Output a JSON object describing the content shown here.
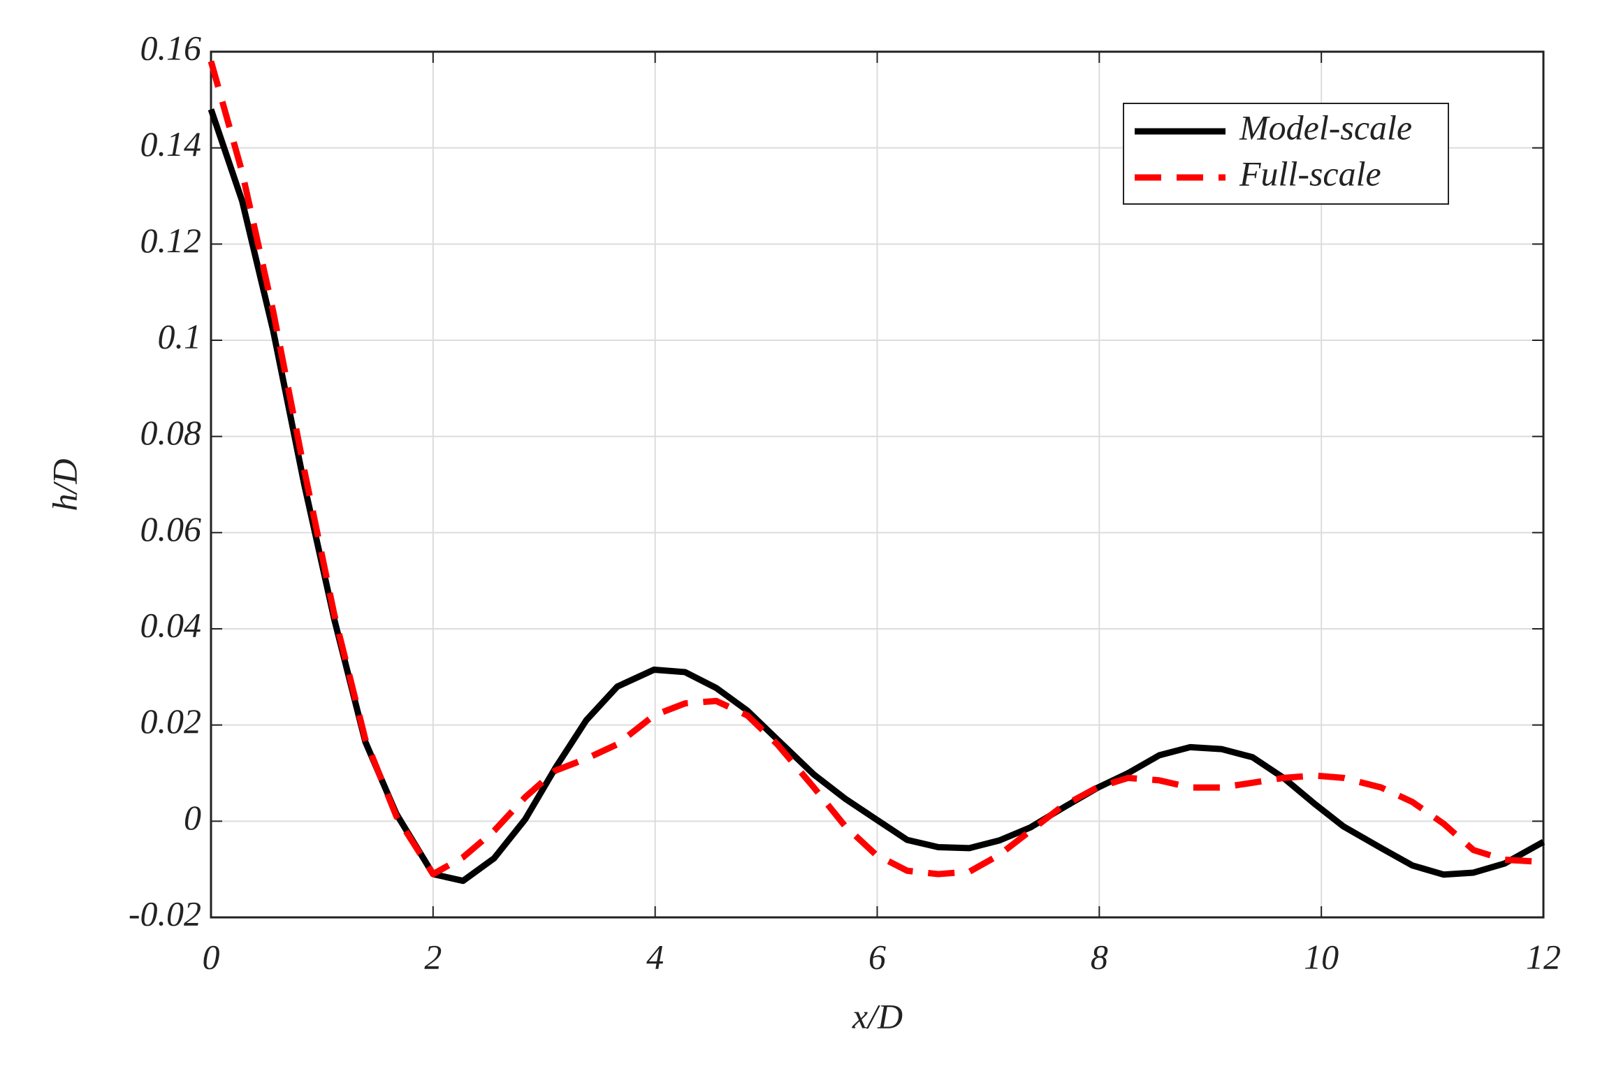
{
  "chart_data": {
    "type": "line",
    "xlabel": "x/D",
    "ylabel": "h/D",
    "x": [
      0,
      0.28,
      0.56,
      0.84,
      1.11,
      1.39,
      1.67,
      2.0,
      2.27,
      2.55,
      2.83,
      3.1,
      3.38,
      3.66,
      3.99,
      4.27,
      4.55,
      4.83,
      5.1,
      5.43,
      5.71,
      5.99,
      6.27,
      6.55,
      6.83,
      7.1,
      7.38,
      7.66,
      7.98,
      8.26,
      8.54,
      8.82,
      9.1,
      9.38,
      9.66,
      9.94,
      10.2,
      10.54,
      10.82,
      11.1,
      11.37,
      11.65,
      12
    ],
    "series": [
      {
        "name": "Model-scale",
        "color": "#000000",
        "dash": false,
        "values": [
          0.148,
          0.129,
          0.102,
          0.07,
          0.042,
          0.0165,
          0.0015,
          -0.011,
          -0.0124,
          -0.0077,
          0.0004,
          0.011,
          0.021,
          0.028,
          0.0315,
          0.031,
          0.0277,
          0.023,
          0.017,
          0.0097,
          0.0047,
          0.0004,
          -0.0039,
          -0.0054,
          -0.0056,
          -0.004,
          -0.0013,
          0.0026,
          0.0069,
          0.01,
          0.0137,
          0.0154,
          0.015,
          0.0133,
          0.009,
          0.0036,
          -0.0011,
          -0.0056,
          -0.0092,
          -0.0111,
          -0.0107,
          -0.0088,
          -0.0043
        ]
      },
      {
        "name": "Full-scale",
        "color": "#ff0000",
        "dash": true,
        "values": [
          0.158,
          0.135,
          0.106,
          0.073,
          0.043,
          0.017,
          0.001,
          -0.011,
          -0.0075,
          -0.002,
          0.005,
          0.0105,
          0.013,
          0.016,
          0.022,
          0.0245,
          0.025,
          0.022,
          0.016,
          0.007,
          -0.001,
          -0.007,
          -0.0103,
          -0.011,
          -0.0105,
          -0.007,
          -0.002,
          0.003,
          0.007,
          0.009,
          0.0085,
          0.007,
          0.007,
          0.008,
          0.009,
          0.0095,
          0.009,
          0.007,
          0.004,
          -0.0005,
          -0.006,
          -0.008,
          -0.0085
        ]
      }
    ],
    "xlim": [
      0,
      12
    ],
    "xticks": [
      0,
      2,
      4,
      6,
      8,
      10,
      12
    ],
    "ylim": [
      -0.02,
      0.16
    ],
    "yticks": [
      -0.02,
      0,
      0.02,
      0.04,
      0.06,
      0.08,
      0.1,
      0.12,
      0.14,
      0.16
    ],
    "grid": true,
    "legend": "upper right"
  }
}
